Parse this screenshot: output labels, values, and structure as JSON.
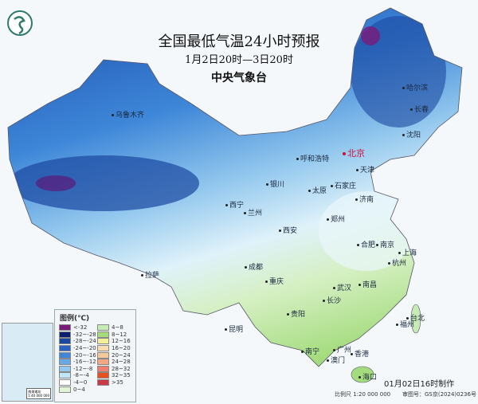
{
  "title": "全国最低气温24小时预报",
  "subtitle": "1月2日20时—3日20时",
  "issuer": "中央气象台",
  "made_time": "01月02日16时制作",
  "scale": "比例尺 1:20 000 000",
  "approval": "审图号：GS京(2024)0236号",
  "inset_label": "南海诸岛",
  "inset_scale": "1:40 000 000",
  "logo": "CMA weather logo",
  "capital": "北京",
  "cities": [
    "乌鲁木齐",
    "哈尔滨",
    "长春",
    "沈阳",
    "呼和浩特",
    "天津",
    "石家庄",
    "太原",
    "济南",
    "银川",
    "西宁",
    "兰州",
    "郑州",
    "西安",
    "合肥",
    "南京",
    "上海",
    "杭州",
    "成都",
    "重庆",
    "武汉",
    "南昌",
    "长沙",
    "拉萨",
    "贵阳",
    "昆明",
    "福州",
    "台北",
    "南宁",
    "广州",
    "澳门",
    "香港",
    "海口"
  ],
  "legend": {
    "title": "图例(℃)",
    "items": [
      {
        "label": "<-32",
        "color": "#7a1a7a"
      },
      {
        "label": "-32~-28",
        "color": "#0a1f6e"
      },
      {
        "label": "-28~-24",
        "color": "#1a47a0"
      },
      {
        "label": "-24~-20",
        "color": "#2b62c2"
      },
      {
        "label": "-20~-16",
        "color": "#3d86d8"
      },
      {
        "label": "-16~-12",
        "color": "#67a8e6"
      },
      {
        "label": "-12~-8",
        "color": "#93c8ee"
      },
      {
        "label": "-8~-4",
        "color": "#bfe6f6"
      },
      {
        "label": "-4~0",
        "color": "#ffffff"
      },
      {
        "label": "0~4",
        "color": "#e2f4d6"
      },
      {
        "label": "4~8",
        "color": "#c6ebb4"
      },
      {
        "label": "8~12",
        "color": "#a4dc7d"
      },
      {
        "label": "12~16",
        "color": "#f4f09a"
      },
      {
        "label": "16~20",
        "color": "#f6dcae"
      },
      {
        "label": "20~24",
        "color": "#f5c89a"
      },
      {
        "label": "24~28",
        "color": "#f4a882"
      },
      {
        "label": "28~32",
        "color": "#ef8070"
      },
      {
        "label": "32~35",
        "color": "#e8501e"
      },
      {
        "label": ">35",
        "color": "#c83a48"
      }
    ]
  }
}
